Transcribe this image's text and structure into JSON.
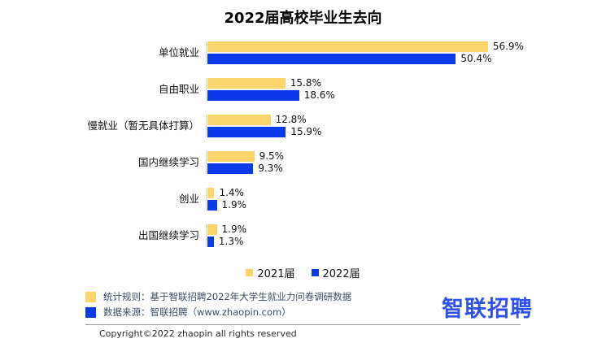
{
  "title": "2022届高校毕业生去向",
  "chart_data": {
    "type": "bar",
    "orientation": "horizontal",
    "categories": [
      "单位就业",
      "自由职业",
      "慢就业（暂无具体打算）",
      "国内继续学习",
      "创业",
      "出国继续学习"
    ],
    "series": [
      {
        "name": "2021届",
        "color": "#fad56b",
        "values": [
          56.9,
          15.8,
          12.8,
          9.5,
          1.4,
          1.9
        ]
      },
      {
        "name": "2022届",
        "color": "#0b3be8",
        "values": [
          50.4,
          18.6,
          15.9,
          9.3,
          1.9,
          1.3
        ]
      }
    ],
    "value_suffix": "%",
    "xlim": [
      0,
      60
    ],
    "grid": false,
    "legend_position": "bottom",
    "value_labels": "outside-end"
  },
  "footnotes": [
    {
      "color": "#fad56b",
      "text": "统计规则：基于智联招聘2022年大学生就业力问卷调研数据"
    },
    {
      "color": "#0b3be8",
      "text": "数据来源：智联招聘（www.zhaopin.com）"
    }
  ],
  "logo": {
    "text": "智联招聘"
  },
  "copyright": "Copyright©2022 zhaopin all rights reserved",
  "colors": {
    "bar_2021": "#fad56b",
    "bar_2022": "#0b3be8",
    "logo_blue": "#3150f0",
    "note_text": "#3d4d66",
    "axis_line": "#d9d9d9"
  }
}
